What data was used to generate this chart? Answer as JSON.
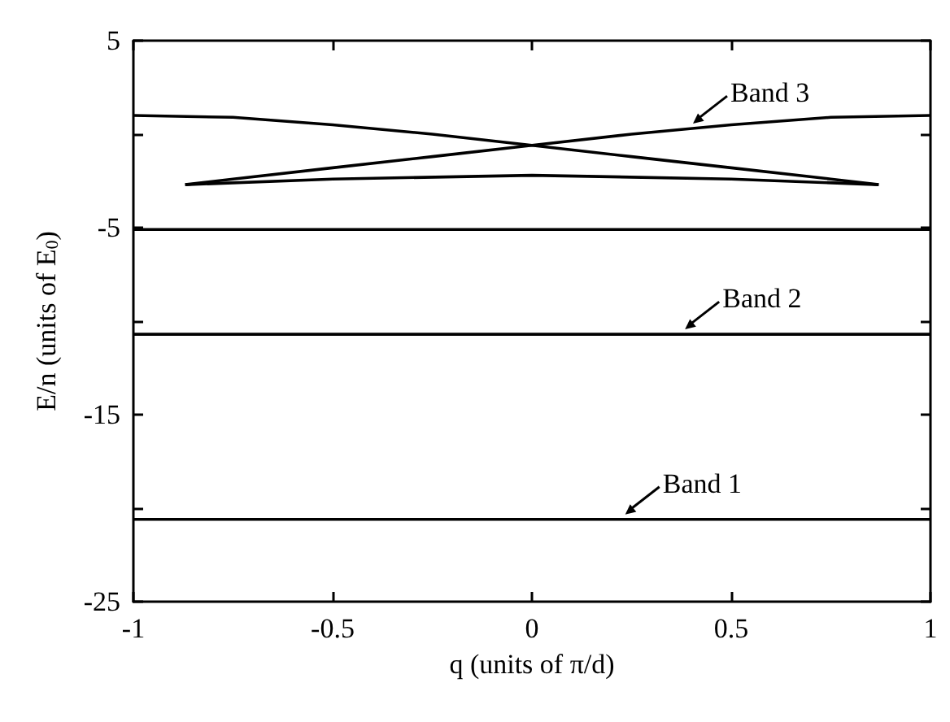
{
  "chart_data": {
    "type": "line",
    "xlabel": "q (units of π/d)",
    "ylabel": "E/n (units of E$_{0}$)",
    "xlim": [
      -1,
      1
    ],
    "xticks": [
      -1,
      -0.5,
      0,
      0.5,
      1
    ],
    "ylim": [
      -25,
      5
    ],
    "yticks": [
      -25,
      {
        "value": -20,
        "label": null
      },
      -15,
      {
        "value": -10,
        "label": null
      },
      -5,
      {
        "value": 0,
        "label": null
      },
      5
    ],
    "grid": false,
    "marker": "none",
    "line_style": "solid",
    "series": [
      {
        "color": "#000000",
        "x": [
          -1,
          1
        ],
        "values": [
          -20.6,
          -20.6
        ]
      },
      {
        "color": "#000000",
        "x": [
          -1,
          1
        ],
        "values": [
          -10.7,
          -10.7
        ]
      },
      {
        "color": "#000000",
        "x": [
          -1,
          1
        ],
        "values": [
          -5.1,
          -5.1
        ]
      },
      {
        "color": "#000000",
        "x": [
          -1,
          -0.75,
          -0.5,
          -0.25,
          0,
          0.25,
          0.5,
          0.75,
          0.87
        ],
        "values": [
          1.0,
          0.9,
          0.5,
          0.0,
          -0.6,
          -1.2,
          -1.8,
          -2.4,
          -2.7
        ]
      },
      {
        "color": "#000000",
        "x": [
          -0.87,
          -0.75,
          -0.5,
          -0.25,
          0,
          0.25,
          0.5,
          0.75,
          1
        ],
        "values": [
          -2.7,
          -2.4,
          -1.8,
          -1.2,
          -0.6,
          0.0,
          0.5,
          0.9,
          1.0
        ]
      },
      {
        "color": "#000000",
        "x": [
          -0.87,
          -0.5,
          0,
          0.5,
          0.87
        ],
        "values": [
          -2.7,
          -2.4,
          -2.2,
          -2.4,
          -2.7
        ]
      }
    ],
    "annotations": [
      {
        "text": "Band 3",
        "x": 0.4,
        "y": 0.3
      },
      {
        "text": "Band 2",
        "x": 0.38,
        "y": -10.7
      },
      {
        "text": "Band 1",
        "x": 0.23,
        "y": -20.6
      }
    ]
  }
}
